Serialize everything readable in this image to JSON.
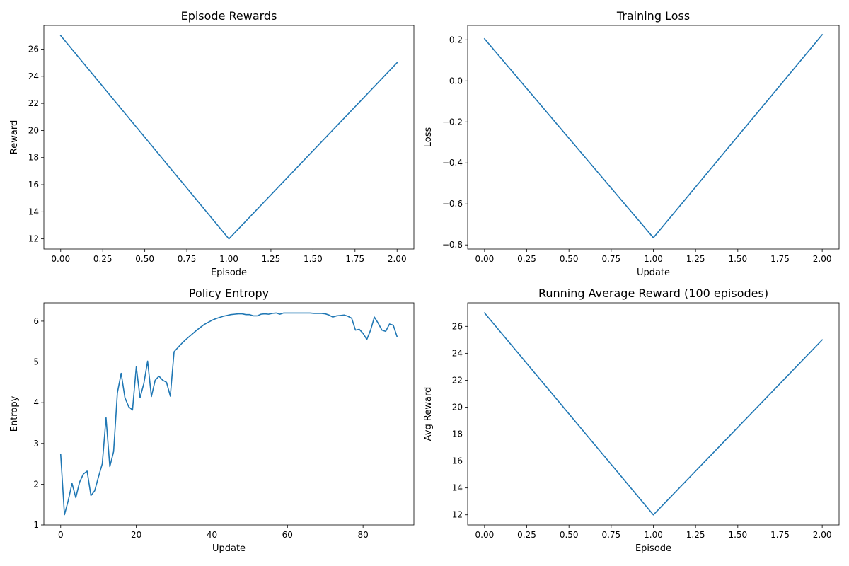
{
  "chart_data": [
    {
      "type": "line",
      "title": "Episode Rewards",
      "xlabel": "Episode",
      "ylabel": "Reward",
      "xlim": [
        -0.1,
        2.1
      ],
      "ylim": [
        11.25,
        27.75
      ],
      "xticks": [
        0,
        0.25,
        0.5,
        0.75,
        1.0,
        1.25,
        1.5,
        1.75,
        2.0
      ],
      "xtick_labels": [
        "0.00",
        "0.25",
        "0.50",
        "0.75",
        "1.00",
        "1.25",
        "1.50",
        "1.75",
        "2.00"
      ],
      "yticks": [
        12,
        14,
        16,
        18,
        20,
        22,
        24,
        26
      ],
      "ytick_labels": [
        "12",
        "14",
        "16",
        "18",
        "20",
        "22",
        "24",
        "26"
      ],
      "grid": false,
      "color": "#1f77b4",
      "series": [
        {
          "x": [
            0,
            1,
            2
          ],
          "y": [
            27,
            12,
            25
          ]
        }
      ]
    },
    {
      "type": "line",
      "title": "Training Loss",
      "xlabel": "Update",
      "ylabel": "Loss",
      "xlim": [
        -0.1,
        2.1
      ],
      "ylim": [
        -0.82,
        0.27
      ],
      "xticks": [
        0,
        0.25,
        0.5,
        0.75,
        1.0,
        1.25,
        1.5,
        1.75,
        2.0
      ],
      "xtick_labels": [
        "0.00",
        "0.25",
        "0.50",
        "0.75",
        "1.00",
        "1.25",
        "1.50",
        "1.75",
        "2.00"
      ],
      "yticks": [
        -0.8,
        -0.6,
        -0.4,
        -0.2,
        0.0,
        0.2
      ],
      "ytick_labels": [
        "−0.8",
        "−0.6",
        "−0.4",
        "−0.2",
        "0.0",
        "0.2"
      ],
      "grid": false,
      "color": "#1f77b4",
      "series": [
        {
          "x": [
            0,
            1,
            2
          ],
          "y": [
            0.205,
            -0.765,
            0.225
          ]
        }
      ]
    },
    {
      "type": "line",
      "title": "Policy Entropy",
      "xlabel": "Update",
      "ylabel": "Entropy",
      "xlim": [
        -4.45,
        93.45
      ],
      "ylim": [
        1.0,
        6.45
      ],
      "xticks": [
        0,
        20,
        40,
        60,
        80
      ],
      "xtick_labels": [
        "0",
        "20",
        "40",
        "60",
        "80"
      ],
      "yticks": [
        1,
        2,
        3,
        4,
        5,
        6
      ],
      "ytick_labels": [
        "1",
        "2",
        "3",
        "4",
        "5",
        "6"
      ],
      "grid": false,
      "color": "#1f77b4",
      "series": [
        {
          "x": [
            0,
            1,
            2,
            3,
            4,
            5,
            6,
            7,
            8,
            9,
            10,
            11,
            12,
            13,
            14,
            15,
            16,
            17,
            18,
            19,
            20,
            21,
            22,
            23,
            24,
            25,
            26,
            27,
            28,
            29,
            30,
            31,
            32,
            33,
            34,
            35,
            36,
            37,
            38,
            39,
            40,
            41,
            42,
            43,
            44,
            45,
            46,
            47,
            48,
            49,
            50,
            51,
            52,
            53,
            54,
            55,
            56,
            57,
            58,
            59,
            60,
            61,
            62,
            63,
            64,
            65,
            66,
            67,
            68,
            69,
            70,
            71,
            72,
            73,
            74,
            75,
            76,
            77,
            78,
            79,
            80,
            81,
            82,
            83,
            84,
            85,
            86,
            87,
            88,
            89
          ],
          "y": [
            2.73,
            1.25,
            1.6,
            2.02,
            1.67,
            2.05,
            2.25,
            2.32,
            1.72,
            1.84,
            2.18,
            2.5,
            3.63,
            2.43,
            2.8,
            4.24,
            4.72,
            4.12,
            3.9,
            3.82,
            4.88,
            4.12,
            4.47,
            5.02,
            4.15,
            4.55,
            4.65,
            4.55,
            4.5,
            4.16,
            5.25,
            5.35,
            5.45,
            5.54,
            5.62,
            5.7,
            5.78,
            5.85,
            5.92,
            5.97,
            6.02,
            6.06,
            6.09,
            6.12,
            6.14,
            6.16,
            6.17,
            6.18,
            6.18,
            6.16,
            6.16,
            6.13,
            6.13,
            6.17,
            6.18,
            6.17,
            6.19,
            6.2,
            6.17,
            6.2,
            6.2,
            6.2,
            6.2,
            6.2,
            6.2,
            6.2,
            6.2,
            6.19,
            6.19,
            6.19,
            6.18,
            6.15,
            6.1,
            6.13,
            6.14,
            6.15,
            6.12,
            6.07,
            5.78,
            5.8,
            5.7,
            5.55,
            5.78,
            6.1,
            5.95,
            5.78,
            5.75,
            5.93,
            5.9,
            5.62
          ]
        }
      ]
    },
    {
      "type": "line",
      "title": "Running Average Reward (100 episodes)",
      "xlabel": "Episode",
      "ylabel": "Avg Reward",
      "xlim": [
        -0.1,
        2.1
      ],
      "ylim": [
        11.25,
        27.75
      ],
      "xticks": [
        0,
        0.25,
        0.5,
        0.75,
        1.0,
        1.25,
        1.5,
        1.75,
        2.0
      ],
      "xtick_labels": [
        "0.00",
        "0.25",
        "0.50",
        "0.75",
        "1.00",
        "1.25",
        "1.50",
        "1.75",
        "2.00"
      ],
      "yticks": [
        12,
        14,
        16,
        18,
        20,
        22,
        24,
        26
      ],
      "ytick_labels": [
        "12",
        "14",
        "16",
        "18",
        "20",
        "22",
        "24",
        "26"
      ],
      "grid": false,
      "color": "#1f77b4",
      "series": [
        {
          "x": [
            0,
            1,
            2
          ],
          "y": [
            27,
            12,
            25
          ]
        }
      ]
    }
  ]
}
